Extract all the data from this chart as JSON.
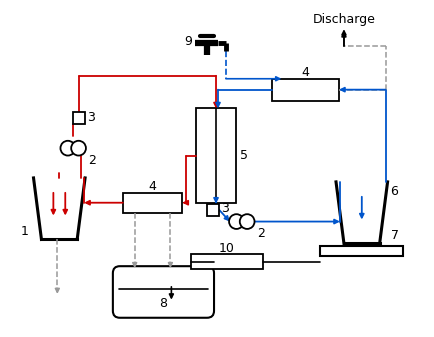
{
  "bg_color": "#ffffff",
  "red": "#cc0000",
  "blue": "#0055cc",
  "black": "#000000",
  "gray": "#999999",
  "figsize": [
    4.35,
    3.37
  ],
  "dpi": 100
}
